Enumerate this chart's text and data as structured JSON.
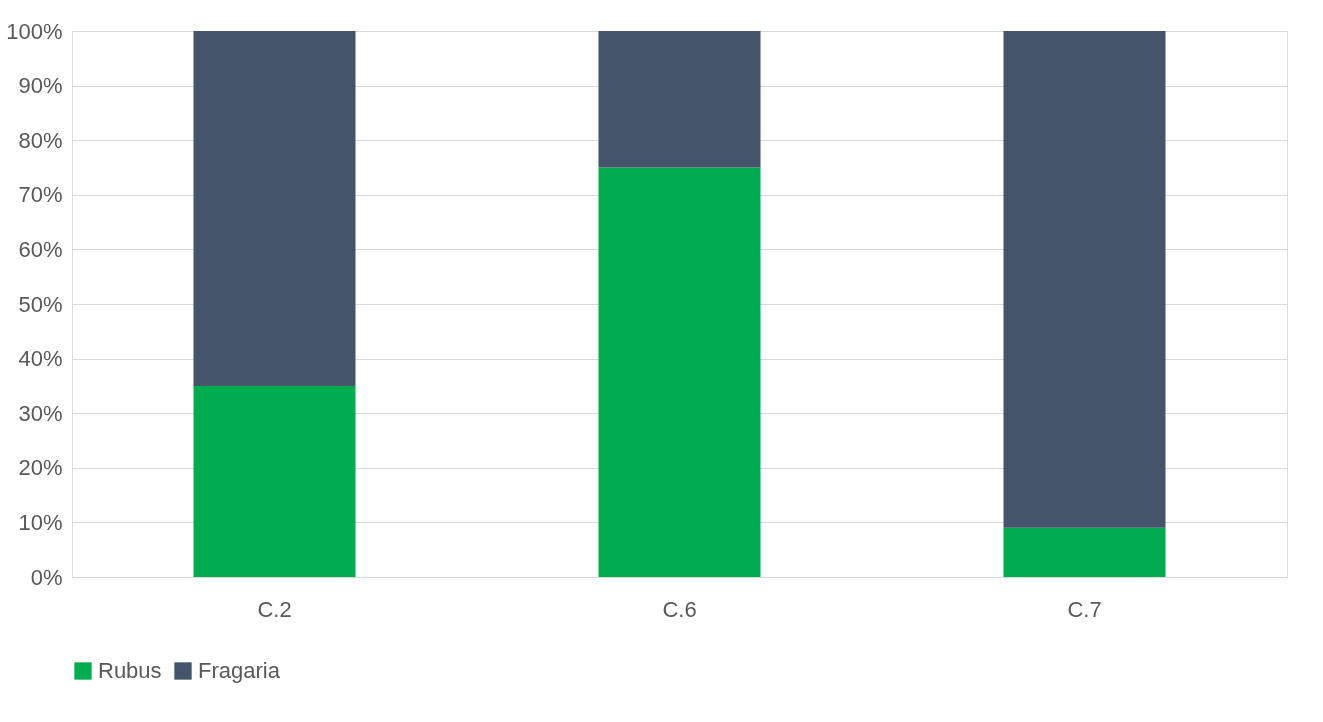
{
  "chart_data": {
    "type": "bar",
    "stacked": true,
    "categories": [
      "C.2",
      "C.6",
      "C.7"
    ],
    "series": [
      {
        "name": "Rubus",
        "color": "#00ad4e",
        "values": [
          35,
          75,
          9
        ]
      },
      {
        "name": "Fragaria",
        "color": "#44546a",
        "values": [
          65,
          25,
          91
        ]
      }
    ],
    "ylim": [
      0,
      100
    ],
    "yticks": [
      {
        "value": 0,
        "label": "0%"
      },
      {
        "value": 10,
        "label": "10%"
      },
      {
        "value": 20,
        "label": "20%"
      },
      {
        "value": 30,
        "label": "30%"
      },
      {
        "value": 40,
        "label": "40%"
      },
      {
        "value": 50,
        "label": "50%"
      },
      {
        "value": 60,
        "label": "60%"
      },
      {
        "value": 70,
        "label": "70%"
      },
      {
        "value": 80,
        "label": "80%"
      },
      {
        "value": 90,
        "label": "90%"
      },
      {
        "value": 100,
        "label": "100%"
      }
    ],
    "grid": "y",
    "legend": "bottom"
  }
}
